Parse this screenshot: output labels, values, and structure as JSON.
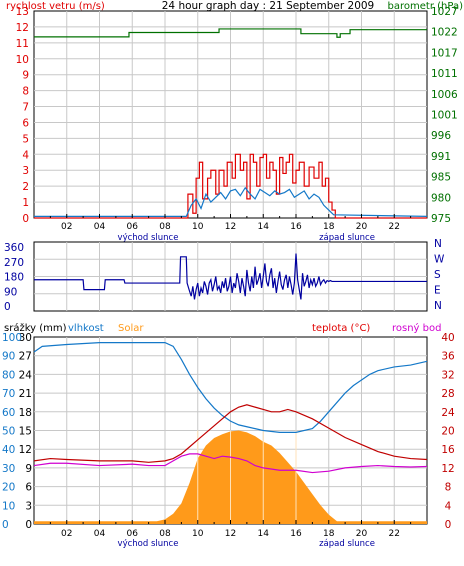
{
  "colors": {
    "red": "#e00000",
    "green": "#007000",
    "blue": "#1478c8",
    "navy": "#0000a0",
    "orange": "#ff9a1a",
    "magenta": "#d000d0",
    "darkred": "#c00000",
    "grid": "#c8c8c8",
    "frame": "#000000"
  },
  "chart_data": [
    {
      "type": "line",
      "title": "24 hour graph day : 21 September 2009",
      "x_tick_labels": [
        "02",
        "04",
        "06",
        "08",
        "10",
        "12",
        "14",
        "16",
        "18",
        "20",
        "22"
      ],
      "sunrise_label": "východ slunce",
      "sunset_label": "západ slunce",
      "left_axis": {
        "label": "rychlost vetru (m/s)",
        "range": [
          0,
          13
        ],
        "ticks": [
          "0",
          "1",
          "2",
          "3",
          "4",
          "5",
          "6",
          "7",
          "8",
          "9",
          "10",
          "11",
          "12",
          "13"
        ]
      },
      "right_axis": {
        "label": "barometr (hPa)",
        "range": [
          975,
          1027
        ],
        "ticks": [
          "975",
          "980",
          "985",
          "991",
          "996",
          "1001",
          "1006",
          "1011",
          "1017",
          "1022",
          "1027"
        ]
      },
      "series": [
        {
          "name": "wind_gust",
          "color": "red",
          "x": [
            0,
            9.3,
            9.4,
            9.7,
            9.9,
            10.1,
            10.3,
            10.6,
            10.8,
            11.1,
            11.3,
            11.6,
            11.8,
            12.1,
            12.3,
            12.6,
            12.8,
            13.0,
            13.2,
            13.4,
            13.6,
            13.8,
            14.0,
            14.2,
            14.4,
            14.6,
            14.8,
            15.0,
            15.2,
            15.4,
            15.6,
            15.8,
            16.0,
            16.2,
            16.5,
            16.8,
            17.1,
            17.4,
            17.6,
            17.8,
            18.0,
            18.2,
            18.4,
            24
          ],
          "y": [
            0,
            0,
            1.5,
            0.3,
            2.5,
            3.5,
            1.2,
            2.5,
            3.0,
            1.5,
            3.0,
            2.0,
            3.5,
            2.5,
            4.0,
            3.0,
            3.5,
            1.2,
            4.0,
            3.5,
            2.0,
            3.8,
            4.0,
            2.5,
            3.5,
            3.0,
            1.5,
            3.8,
            2.8,
            3.5,
            4.0,
            2.2,
            3.0,
            3.5,
            2.0,
            3.2,
            2.5,
            3.5,
            2.0,
            2.5,
            1.0,
            0.5,
            0,
            0
          ]
        },
        {
          "name": "wind_speed",
          "color": "blue",
          "x": [
            0,
            9.3,
            9.6,
            9.9,
            10.2,
            10.5,
            10.8,
            11.1,
            11.4,
            11.7,
            12.0,
            12.3,
            12.6,
            12.9,
            13.2,
            13.5,
            13.8,
            14.1,
            14.4,
            14.7,
            15.0,
            15.3,
            15.6,
            15.9,
            16.2,
            16.5,
            16.8,
            17.1,
            17.4,
            17.7,
            18.0,
            18.3,
            24
          ],
          "y": [
            0.1,
            0.1,
            0.8,
            1.2,
            0.6,
            1.5,
            1.0,
            1.3,
            1.6,
            1.2,
            1.7,
            1.8,
            1.4,
            1.9,
            1.5,
            1.2,
            1.8,
            1.6,
            1.4,
            1.7,
            1.5,
            1.6,
            1.8,
            1.3,
            1.5,
            1.7,
            1.2,
            1.5,
            1.3,
            0.8,
            0.5,
            0.2,
            0.1
          ]
        },
        {
          "name": "pressure",
          "color": "green",
          "x": [
            0,
            5.3,
            5.8,
            10.8,
            11.3,
            15.7,
            16.3,
            18.3,
            18.5,
            18.7,
            19.3,
            24
          ],
          "y": [
            1020.5,
            1020.5,
            1021.6,
            1021.6,
            1022.5,
            1022.5,
            1021.3,
            1021.3,
            1020.4,
            1021.3,
            1022.3,
            1022.3
          ]
        }
      ]
    },
    {
      "type": "line",
      "x_tick_labels": [],
      "left_axis": {
        "ticks": [
          "0",
          "90",
          "180",
          "270",
          "360"
        ]
      },
      "right_axis": {
        "ticks": [
          "N",
          "W",
          "S",
          "E",
          "N"
        ]
      },
      "series": [
        {
          "name": "wind_direction",
          "color": "navy",
          "x": [
            0,
            3.0,
            3.05,
            4.3,
            4.35,
            5.5,
            5.55,
            8.9,
            8.95,
            9.3,
            9.35,
            9.5,
            9.6,
            9.7,
            9.8,
            9.9,
            10.0,
            10.1,
            10.2,
            10.3,
            10.4,
            10.5,
            10.6,
            10.7,
            10.8,
            10.9,
            11.0,
            11.1,
            11.2,
            11.3,
            11.4,
            11.5,
            11.6,
            11.7,
            11.8,
            11.9,
            12.0,
            12.1,
            12.2,
            12.3,
            12.4,
            12.5,
            12.6,
            12.7,
            12.8,
            12.9,
            13.0,
            13.1,
            13.2,
            13.3,
            13.4,
            13.5,
            13.6,
            13.7,
            13.8,
            13.9,
            14.0,
            14.1,
            14.2,
            14.3,
            14.4,
            14.5,
            14.6,
            14.7,
            14.8,
            14.9,
            15.0,
            15.1,
            15.2,
            15.3,
            15.4,
            15.5,
            15.6,
            15.7,
            15.8,
            15.9,
            16.0,
            16.1,
            16.2,
            16.3,
            16.4,
            16.5,
            16.6,
            16.7,
            16.8,
            16.9,
            17.0,
            17.1,
            17.2,
            17.3,
            17.4,
            17.5,
            17.6,
            17.7,
            17.8,
            17.9,
            18.0,
            18.1,
            18.2,
            18.3,
            24
          ],
          "y": [
            160,
            160,
            100,
            100,
            160,
            160,
            140,
            140,
            300,
            300,
            140,
            90,
            60,
            120,
            40,
            100,
            140,
            60,
            110,
            80,
            150,
            120,
            70,
            140,
            160,
            90,
            130,
            180,
            100,
            120,
            80,
            150,
            110,
            170,
            90,
            120,
            180,
            80,
            140,
            110,
            200,
            150,
            80,
            170,
            120,
            60,
            220,
            140,
            90,
            180,
            110,
            240,
            130,
            160,
            200,
            110,
            180,
            260,
            150,
            120,
            190,
            230,
            110,
            170,
            80,
            150,
            210,
            130,
            100,
            160,
            190,
            110,
            180,
            130,
            70,
            140,
            320,
            160,
            100,
            40,
            200,
            120,
            150,
            190,
            110,
            160,
            130,
            170,
            120,
            140,
            180,
            130,
            150,
            160,
            140,
            155,
            150,
            155,
            150,
            150,
            150
          ]
        }
      ]
    },
    {
      "type": "area",
      "x_tick_labels": [
        "02",
        "04",
        "06",
        "08",
        "10",
        "12",
        "14",
        "16",
        "18",
        "20",
        "22"
      ],
      "sunrise_label": "východ slunce",
      "sunset_label": "západ slunce",
      "labels": {
        "rain": "srážky (mm)",
        "humidity": "vlhkost",
        "solar": "Solar",
        "temperature": "teplota (°C)",
        "dewpoint": "rosný bod"
      },
      "axis_rain": {
        "range": [
          0,
          30
        ],
        "ticks": [
          "0",
          "3",
          "6",
          "9",
          "12",
          "15",
          "18",
          "21",
          "24",
          "27",
          "30"
        ]
      },
      "axis_humidity": {
        "range": [
          0,
          100
        ],
        "ticks": [
          "0",
          "10",
          "20",
          "30",
          "40",
          "50",
          "60",
          "70",
          "80",
          "90",
          "100"
        ]
      },
      "axis_temperature": {
        "range": [
          0,
          40
        ],
        "ticks": [
          "0",
          "4",
          "8",
          "12",
          "16",
          "20",
          "24",
          "28",
          "32",
          "36",
          "40"
        ]
      },
      "series": [
        {
          "name": "solar",
          "color": "orange",
          "x": [
            0,
            7.5,
            8.0,
            8.5,
            9.0,
            9.5,
            10.0,
            10.5,
            11.0,
            11.5,
            12.0,
            12.5,
            13.0,
            13.5,
            14.0,
            14.5,
            15.0,
            15.5,
            16.0,
            16.5,
            17.0,
            17.5,
            18.0,
            18.5,
            24
          ],
          "y": [
            1.5,
            1.5,
            2.5,
            5.5,
            11,
            22,
            35,
            42,
            46,
            48,
            49.5,
            50,
            49,
            47,
            44,
            42,
            38,
            33,
            28,
            22,
            16,
            10,
            5,
            1.5,
            1.5
          ]
        },
        {
          "name": "humidity",
          "color": "blue",
          "x": [
            0,
            0.5,
            2,
            4,
            6,
            8,
            8.5,
            9,
            9.5,
            10,
            10.5,
            11,
            11.5,
            12,
            12.5,
            13,
            13.5,
            14,
            15,
            16,
            17,
            17.5,
            18,
            18.5,
            19,
            19.5,
            20,
            20.5,
            21,
            22,
            23,
            24
          ],
          "y": [
            92,
            95,
            96,
            97,
            97,
            97,
            95,
            88,
            80,
            73,
            67,
            62,
            58,
            55,
            53,
            52,
            51,
            50,
            49,
            49,
            51,
            55,
            60,
            65,
            70,
            74,
            77,
            80,
            82,
            84,
            85,
            87
          ]
        },
        {
          "name": "temperature",
          "color": "darkred",
          "x": [
            0,
            1,
            2,
            4,
            6,
            7,
            8,
            8.5,
            9,
            9.5,
            10,
            10.5,
            11,
            11.5,
            12,
            12.5,
            13,
            13.5,
            14,
            14.5,
            15,
            15.5,
            16,
            17,
            18,
            19,
            20,
            21,
            22,
            23,
            24
          ],
          "y": [
            13.5,
            14,
            13.8,
            13.5,
            13.5,
            13.2,
            13.5,
            14,
            15,
            16.5,
            18,
            19.5,
            21,
            22.5,
            24,
            25,
            25.5,
            25,
            24.5,
            24,
            24,
            24.5,
            24,
            22.5,
            20.5,
            18.5,
            17,
            15.5,
            14.5,
            14,
            13.8
          ]
        },
        {
          "name": "dewpoint",
          "color": "magenta",
          "x": [
            0,
            1,
            2,
            4,
            6,
            7,
            8,
            8.5,
            9,
            9.5,
            10,
            10.5,
            11,
            11.5,
            12,
            12.5,
            13,
            13.5,
            14,
            15,
            16,
            17,
            18,
            19,
            20,
            21,
            22,
            23,
            24
          ],
          "y": [
            12.5,
            13,
            13,
            12.5,
            12.8,
            12.5,
            12.5,
            13.5,
            14.5,
            15,
            15,
            14.5,
            14,
            14.5,
            14.3,
            14,
            13.5,
            12.5,
            12,
            11.5,
            11.5,
            11,
            11.3,
            12,
            12.3,
            12.5,
            12.3,
            12.2,
            12.3
          ]
        }
      ]
    }
  ]
}
